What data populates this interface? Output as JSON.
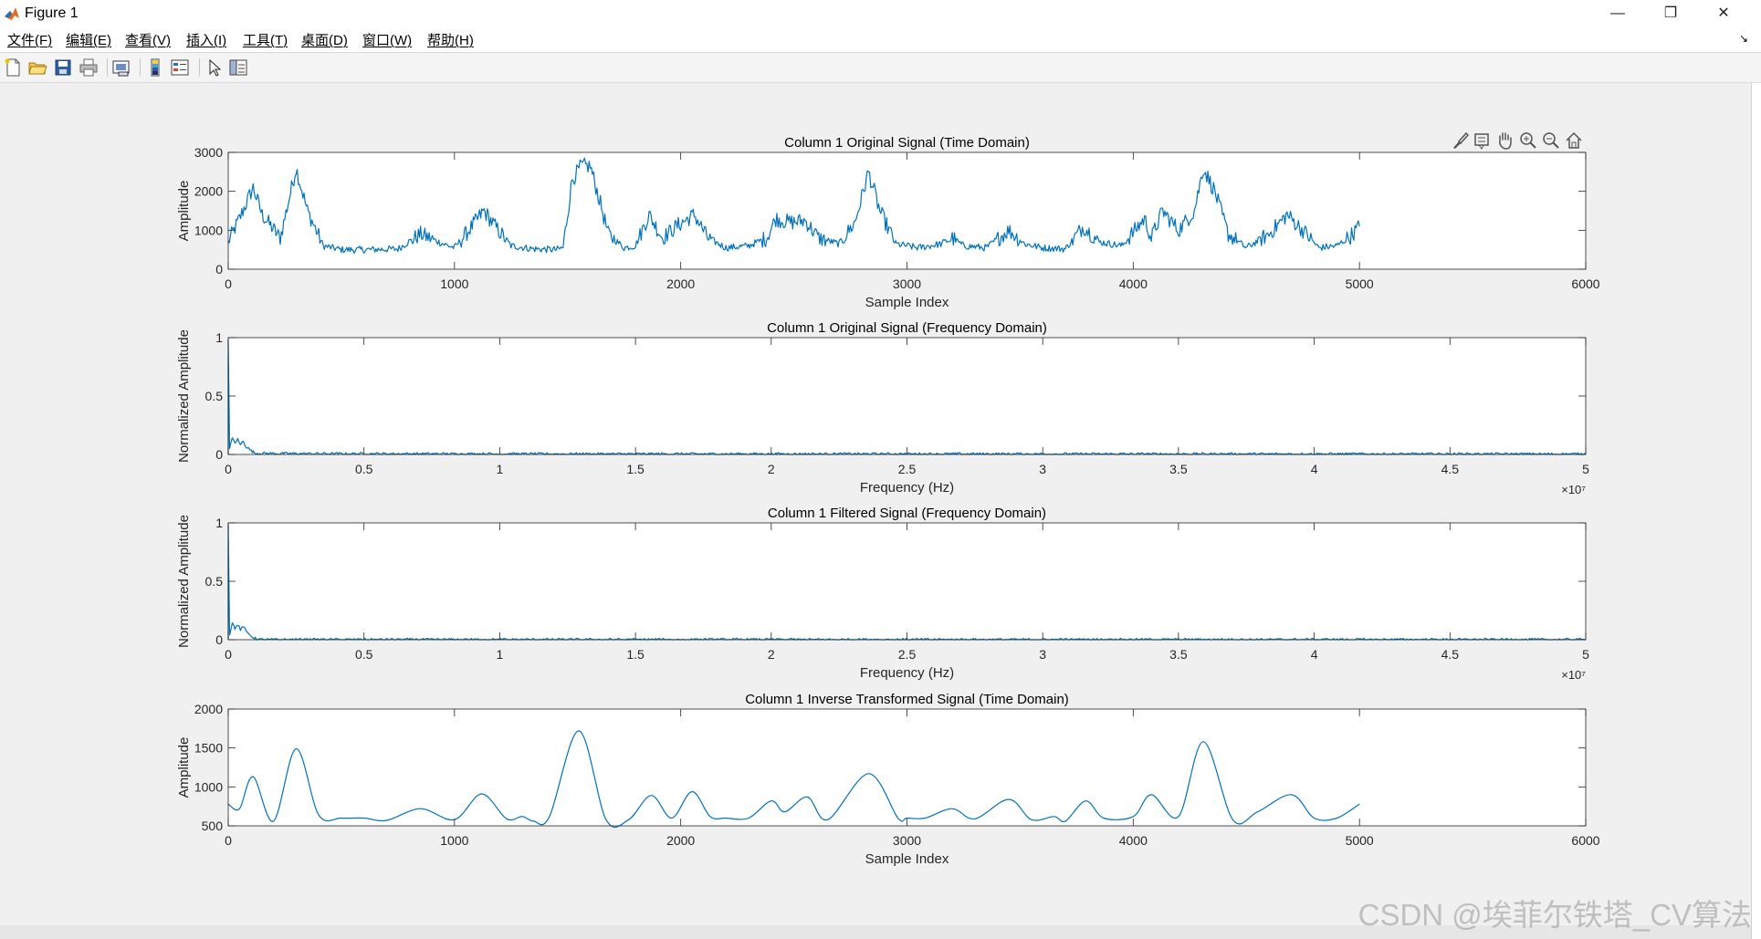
{
  "window": {
    "title": "Figure 1",
    "minimize_glyph": "—",
    "restore_glyph": "❐",
    "close_glyph": "✕",
    "app_icon": "matlab-icon"
  },
  "menu": {
    "items": [
      "文件(F)",
      "编辑(E)",
      "查看(V)",
      "插入(I)",
      "工具(T)",
      "桌面(D)",
      "窗口(W)",
      "帮助(H)"
    ],
    "overflow_glyph": "↘"
  },
  "toolbar": {
    "buttons": [
      "new-figure-icon",
      "open-icon",
      "save-icon",
      "print-icon",
      "link-plot-icon",
      "colorbar-icon",
      "legend-icon",
      "select-arrow-icon",
      "property-inspector-icon"
    ]
  },
  "axes_toolbar": {
    "buttons": [
      "brush-icon",
      "data-tips-icon",
      "pan-hand-icon",
      "zoom-in-icon",
      "zoom-out-icon",
      "home-icon"
    ]
  },
  "watermark": "CSDN @埃菲尔铁塔_CV算法",
  "colors": {
    "line": "#0072bd",
    "axes_bg": "#ffffff",
    "figure_bg": "#f0f0f0",
    "axis": "#262626"
  },
  "chart_data": [
    {
      "type": "line",
      "title": "Column 1 Original Signal (Time Domain)",
      "xlabel": "Sample Index",
      "ylabel": "Amplitude",
      "xlim": [
        0,
        6000
      ],
      "ylim": [
        0,
        3000
      ],
      "xticks": [
        0,
        1000,
        2000,
        3000,
        4000,
        5000,
        6000
      ],
      "xtick_labels": [
        "0",
        "1000",
        "2000",
        "3000",
        "4000",
        "5000",
        "6000"
      ],
      "yticks": [
        0,
        1000,
        2000,
        3000
      ],
      "ytick_labels": [
        "0",
        "1000",
        "2000",
        "3000"
      ],
      "exponent_label": "",
      "signal": "noisy",
      "series": [
        {
          "x": [
            0,
            50,
            110,
            150,
            230,
            300,
            350,
            420,
            500,
            600,
            750,
            850,
            950,
            1000,
            1050,
            1130,
            1180,
            1250,
            1350,
            1450,
            1480,
            1520,
            1560,
            1600,
            1640,
            1680,
            1750,
            1800,
            1860,
            1920,
            1980,
            2060,
            2120,
            2200,
            2300,
            2380,
            2420,
            2480,
            2550,
            2610,
            2700,
            2770,
            2830,
            2880,
            2950,
            3050,
            3150,
            3200,
            3250,
            3350,
            3450,
            3520,
            3600,
            3700,
            3780,
            3850,
            3950,
            4050,
            4080,
            4130,
            4200,
            4270,
            4310,
            4360,
            4420,
            4500,
            4600,
            4680,
            4750,
            4820,
            4900,
            4960,
            5000
          ],
          "y": [
            700,
            1300,
            2100,
            1400,
            800,
            2600,
            1500,
            600,
            500,
            500,
            520,
            900,
            650,
            550,
            900,
            1500,
            1100,
            600,
            520,
            500,
            550,
            2300,
            2650,
            2650,
            1800,
            900,
            550,
            600,
            1400,
            800,
            1100,
            1400,
            800,
            550,
            600,
            800,
            1300,
            1200,
            1250,
            800,
            650,
            1200,
            2500,
            1500,
            650,
            550,
            650,
            800,
            600,
            550,
            1000,
            650,
            550,
            520,
            1100,
            700,
            600,
            1300,
            800,
            1500,
            1000,
            1500,
            2600,
            2000,
            900,
            550,
            900,
            1400,
            1000,
            550,
            600,
            850,
            1100
          ]
        }
      ]
    },
    {
      "type": "line",
      "title": "Column 1 Original Signal (Frequency Domain)",
      "xlabel": "Frequency (Hz)",
      "ylabel": "Normalized Amplitude",
      "xlim": [
        0,
        50000000
      ],
      "ylim": [
        0,
        1
      ],
      "xticks": [
        0,
        5000000,
        10000000,
        15000000,
        20000000,
        25000000,
        30000000,
        35000000,
        40000000,
        45000000,
        50000000
      ],
      "xtick_labels": [
        "0",
        "0.5",
        "1",
        "1.5",
        "2",
        "2.5",
        "3",
        "3.5",
        "4",
        "4.5",
        "5"
      ],
      "yticks": [
        0,
        0.5,
        1
      ],
      "ytick_labels": [
        "0",
        "0.5",
        "1"
      ],
      "exponent_label": "×10⁷",
      "signal": "noisy",
      "series": [
        {
          "x": [
            0,
            1,
            50000,
            150000,
            250000,
            350000,
            450000,
            550000,
            650000,
            750000,
            850000,
            1000000,
            3000000,
            10000000,
            50000000
          ],
          "y": [
            0,
            1,
            0.05,
            0.14,
            0.1,
            0.13,
            0.08,
            0.12,
            0.07,
            0.05,
            0.03,
            0.01,
            0.006,
            0.004,
            0.003
          ]
        }
      ]
    },
    {
      "type": "line",
      "title": "Column 1 Filtered Signal (Frequency Domain)",
      "xlabel": "Frequency (Hz)",
      "ylabel": "Normalized Amplitude",
      "xlim": [
        0,
        50000000
      ],
      "ylim": [
        0,
        1
      ],
      "xticks": [
        0,
        5000000,
        10000000,
        15000000,
        20000000,
        25000000,
        30000000,
        35000000,
        40000000,
        45000000,
        50000000
      ],
      "xtick_labels": [
        "0",
        "0.5",
        "1",
        "1.5",
        "2",
        "2.5",
        "3",
        "3.5",
        "4",
        "4.5",
        "5"
      ],
      "yticks": [
        0,
        0.5,
        1
      ],
      "ytick_labels": [
        "0",
        "0.5",
        "1"
      ],
      "exponent_label": "×10⁷",
      "signal": "noisy",
      "series": [
        {
          "x": [
            0,
            1,
            50000,
            150000,
            250000,
            350000,
            450000,
            550000,
            650000,
            750000,
            850000,
            1000000,
            1200000,
            50000000
          ],
          "y": [
            0,
            1,
            0.05,
            0.14,
            0.1,
            0.13,
            0.08,
            0.12,
            0.07,
            0.05,
            0.03,
            0.01,
            0.0,
            0.0
          ]
        }
      ]
    },
    {
      "type": "line",
      "title": "Column 1 Inverse Transformed Signal (Time Domain)",
      "xlabel": "Sample Index",
      "ylabel": "Amplitude",
      "xlim": [
        0,
        6000
      ],
      "ylim": [
        500,
        2000
      ],
      "xticks": [
        0,
        1000,
        2000,
        3000,
        4000,
        5000,
        6000
      ],
      "xtick_labels": [
        "0",
        "1000",
        "2000",
        "3000",
        "4000",
        "5000",
        "6000"
      ],
      "yticks": [
        500,
        1000,
        1500,
        2000
      ],
      "ytick_labels": [
        "500",
        "1000",
        "1500",
        "2000"
      ],
      "exponent_label": "",
      "signal": "smooth",
      "series": [
        {
          "x": [
            0,
            50,
            110,
            200,
            300,
            400,
            500,
            600,
            700,
            850,
            1000,
            1120,
            1230,
            1300,
            1350,
            1420,
            1550,
            1670,
            1770,
            1870,
            1960,
            2050,
            2130,
            2200,
            2300,
            2400,
            2460,
            2560,
            2650,
            2830,
            2960,
            3000,
            3080,
            3200,
            3300,
            3450,
            3550,
            3650,
            3700,
            3790,
            3870,
            4000,
            4080,
            4200,
            4310,
            4440,
            4550,
            4700,
            4800,
            4900,
            5000
          ],
          "y": [
            780,
            720,
            1130,
            560,
            1490,
            640,
            600,
            600,
            570,
            720,
            580,
            910,
            590,
            620,
            560,
            620,
            1720,
            580,
            580,
            890,
            600,
            940,
            620,
            600,
            600,
            820,
            680,
            870,
            580,
            1170,
            600,
            600,
            600,
            720,
            590,
            840,
            580,
            620,
            560,
            820,
            600,
            620,
            900,
            620,
            1580,
            580,
            680,
            900,
            600,
            600,
            780
          ]
        }
      ]
    }
  ]
}
